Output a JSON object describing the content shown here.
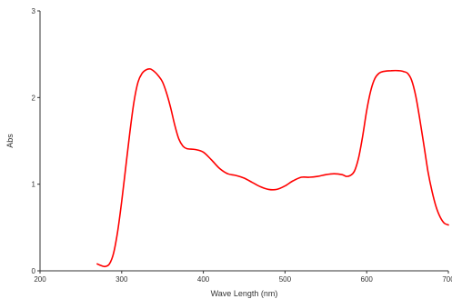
{
  "chart_data": {
    "type": "line",
    "title": "",
    "xlabel": "Wave Length (nm)",
    "ylabel": "Abs",
    "xlim": [
      200,
      700
    ],
    "ylim": [
      0,
      3
    ],
    "xticks": [
      "200",
      "300",
      "400",
      "500",
      "600",
      "700"
    ],
    "yticks": [
      "0",
      "1",
      "2",
      "3"
    ],
    "grid": false,
    "legend": "none",
    "series": [
      {
        "color": "#ff0000",
        "points": [
          [
            270,
            0.08
          ],
          [
            275,
            0.06
          ],
          [
            280,
            0.05
          ],
          [
            285,
            0.08
          ],
          [
            290,
            0.2
          ],
          [
            295,
            0.45
          ],
          [
            300,
            0.8
          ],
          [
            305,
            1.2
          ],
          [
            310,
            1.6
          ],
          [
            315,
            1.95
          ],
          [
            320,
            2.18
          ],
          [
            325,
            2.28
          ],
          [
            330,
            2.32
          ],
          [
            335,
            2.33
          ],
          [
            340,
            2.3
          ],
          [
            345,
            2.25
          ],
          [
            350,
            2.18
          ],
          [
            355,
            2.05
          ],
          [
            360,
            1.88
          ],
          [
            365,
            1.68
          ],
          [
            370,
            1.52
          ],
          [
            375,
            1.44
          ],
          [
            380,
            1.41
          ],
          [
            390,
            1.4
          ],
          [
            400,
            1.37
          ],
          [
            410,
            1.28
          ],
          [
            420,
            1.18
          ],
          [
            430,
            1.12
          ],
          [
            440,
            1.1
          ],
          [
            450,
            1.07
          ],
          [
            460,
            1.02
          ],
          [
            470,
            0.97
          ],
          [
            480,
            0.94
          ],
          [
            490,
            0.94
          ],
          [
            500,
            0.98
          ],
          [
            510,
            1.04
          ],
          [
            520,
            1.08
          ],
          [
            530,
            1.08
          ],
          [
            540,
            1.09
          ],
          [
            550,
            1.11
          ],
          [
            560,
            1.12
          ],
          [
            570,
            1.11
          ],
          [
            575,
            1.09
          ],
          [
            580,
            1.1
          ],
          [
            585,
            1.15
          ],
          [
            590,
            1.3
          ],
          [
            595,
            1.55
          ],
          [
            600,
            1.85
          ],
          [
            605,
            2.08
          ],
          [
            610,
            2.22
          ],
          [
            615,
            2.28
          ],
          [
            620,
            2.3
          ],
          [
            630,
            2.31
          ],
          [
            640,
            2.31
          ],
          [
            645,
            2.3
          ],
          [
            650,
            2.28
          ],
          [
            655,
            2.2
          ],
          [
            660,
            2.02
          ],
          [
            665,
            1.75
          ],
          [
            670,
            1.45
          ],
          [
            675,
            1.15
          ],
          [
            680,
            0.92
          ],
          [
            685,
            0.74
          ],
          [
            690,
            0.62
          ],
          [
            695,
            0.55
          ],
          [
            700,
            0.53
          ]
        ]
      }
    ]
  }
}
